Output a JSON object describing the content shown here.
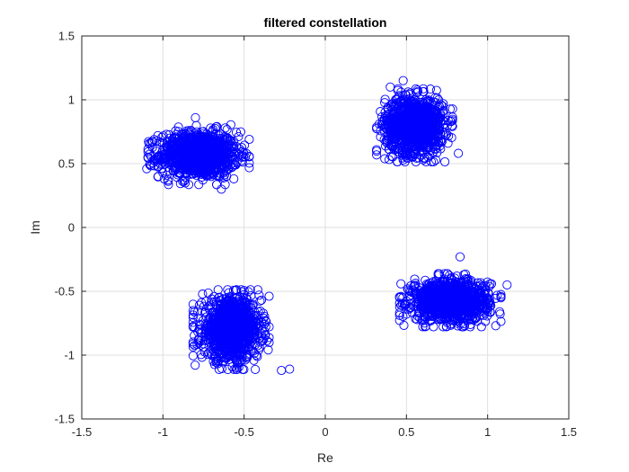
{
  "chart_data": {
    "type": "scatter",
    "title": "filtered constellation",
    "xlabel": "Re",
    "ylabel": "Im",
    "xlim": [
      -1.5,
      1.5
    ],
    "ylim": [
      -1.5,
      1.5
    ],
    "xticks": [
      -1.5,
      -1,
      -0.5,
      0,
      0.5,
      1,
      1.5
    ],
    "yticks": [
      -1.5,
      -1,
      -0.5,
      0,
      0.5,
      1,
      1.5
    ],
    "xtick_labels": [
      "-1.5",
      "-1",
      "-0.5",
      "0",
      "0.5",
      "1",
      "1.5"
    ],
    "ytick_labels": [
      "-1.5",
      "-1",
      "-0.5",
      "0",
      "0.5",
      "1",
      "1.5"
    ],
    "grid": true,
    "marker": "circle-open",
    "marker_color": "#0000ff",
    "clusters": [
      {
        "center": [
          -0.78,
          0.57
        ],
        "spread": [
          0.12,
          0.09
        ],
        "points": 1100
      },
      {
        "center": [
          0.55,
          0.8
        ],
        "spread": [
          0.09,
          0.11
        ],
        "points": 1100
      },
      {
        "center": [
          -0.58,
          -0.8
        ],
        "spread": [
          0.09,
          0.12
        ],
        "points": 1100
      },
      {
        "center": [
          0.77,
          -0.57
        ],
        "spread": [
          0.12,
          0.08
        ],
        "points": 1100
      }
    ],
    "outliers": [
      [
        -0.22,
        -1.11
      ],
      [
        -0.27,
        -1.12
      ],
      [
        1.12,
        -0.45
      ],
      [
        -1.1,
        0.46
      ],
      [
        -0.64,
        0.3
      ],
      [
        0.83,
        -0.23
      ],
      [
        0.48,
        1.15
      ],
      [
        0.4,
        1.1
      ],
      [
        0.82,
        0.58
      ],
      [
        -0.8,
        0.86
      ]
    ]
  }
}
